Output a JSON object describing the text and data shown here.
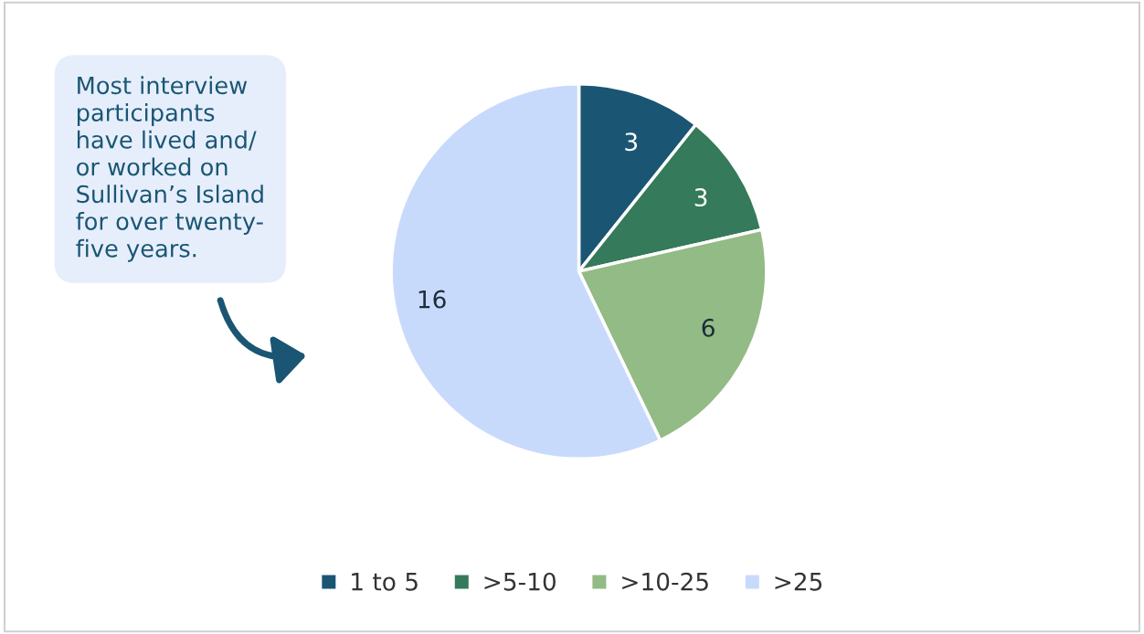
{
  "chart_data": {
    "type": "pie",
    "categories": [
      "1 to 5",
      ">5-10",
      ">10-25",
      ">25"
    ],
    "values": [
      3,
      3,
      6,
      16
    ],
    "colors": [
      "#1a5673",
      "#357a5a",
      "#93bb85",
      "#c8dafc"
    ],
    "data_labels": true,
    "legend": "bottom",
    "annotations": [
      "Most interview\nparticipants\nhave lived and/\nor worked on\nSullivan’s Island\nfor over twenty-\nfive years."
    ]
  }
}
